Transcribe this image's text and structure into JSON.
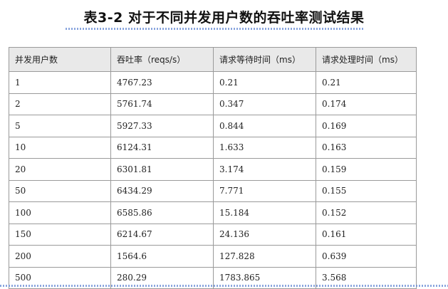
{
  "title": "表3-2 对于不同并发用户数的吞吐率测试结果",
  "table": {
    "headers": [
      "并发用户数",
      "吞吐率（reqs/s）",
      "请求等待时间（ms）",
      "请求处理时间（ms）"
    ],
    "rows": [
      [
        "1",
        "4767.23",
        "0.21",
        "0.21"
      ],
      [
        "2",
        "5761.74",
        "0.347",
        "0.174"
      ],
      [
        "5",
        "5927.33",
        "0.844",
        "0.169"
      ],
      [
        "10",
        "6124.31",
        "1.633",
        "0.163"
      ],
      [
        "20",
        "6301.81",
        "3.174",
        "0.159"
      ],
      [
        "50",
        "6434.29",
        "7.771",
        "0.155"
      ],
      [
        "100",
        "6585.86",
        "15.184",
        "0.152"
      ],
      [
        "150",
        "6214.67",
        "24.136",
        "0.161"
      ],
      [
        "200",
        "1564.6",
        "127.828",
        "0.639"
      ],
      [
        "500",
        "280.29",
        "1783.865",
        "3.568"
      ]
    ]
  }
}
